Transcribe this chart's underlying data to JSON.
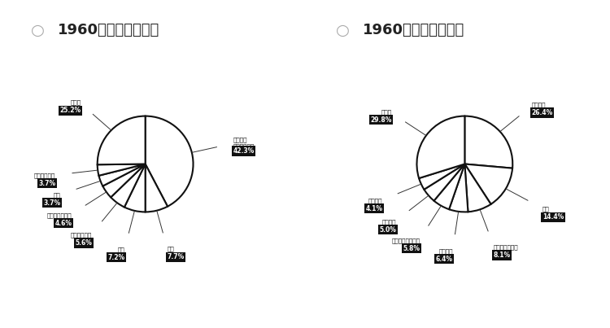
{
  "title1": "1960年の主な輸出品",
  "title2": "1960年の主な輸出先",
  "chart1": {
    "labels": [
      "羊毛及び\nその他の毛皮",
      "小麦",
      "肉類",
      "非鉄金属製品",
      "酪農品及び鳥卵",
      "砂糖",
      "果実及び野菜",
      "その他"
    ],
    "values": [
      42.3,
      7.7,
      7.2,
      5.6,
      4.6,
      3.7,
      3.7,
      25.2
    ],
    "label_values": [
      "42.3%",
      "7.7%",
      "7.2%",
      "5.6%",
      "4.6%",
      "3.7%",
      "3.7%",
      "25.2%"
    ]
  },
  "chart2": {
    "labels": [
      "イギリス",
      "日本",
      "アメリカ合衆国",
      "フランス",
      "ニュージーランド",
      "イタリア",
      "西ドイツ",
      "その他"
    ],
    "values": [
      26.4,
      14.4,
      8.1,
      6.4,
      5.8,
      5.0,
      4.1,
      29.8
    ],
    "label_values": [
      "26.4%",
      "14.4%",
      "8.1%",
      "6.4%",
      "5.8%",
      "5.0%",
      "4.1%",
      "29.8%"
    ]
  },
  "pie_facecolor": "white",
  "pie_edgecolor": "#111111",
  "pie_linewidth": 1.5,
  "label_box_color": "#111111",
  "label_text_color": "white",
  "title_fontsize": 18,
  "bg_color": "white",
  "title_color": "#222222",
  "bullet_color": "#aaaaaa"
}
